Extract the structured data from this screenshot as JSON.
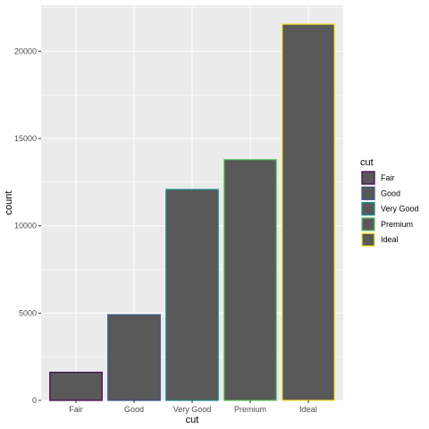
{
  "chart_data": {
    "type": "bar",
    "categories": [
      "Fair",
      "Good",
      "Very Good",
      "Premium",
      "Ideal"
    ],
    "values": [
      1610,
      4906,
      12082,
      13791,
      21551
    ],
    "xlabel": "cut",
    "ylabel": "count",
    "ylim": [
      0,
      22628
    ],
    "yticks": [
      0,
      5000,
      10000,
      15000,
      20000
    ],
    "ytick_labels": [
      "0",
      "5000",
      "10000",
      "15000",
      "20000"
    ],
    "bar_fill": "#595959",
    "outline_colors": [
      "#440154",
      "#3b528b",
      "#21908c",
      "#5dc863",
      "#fde725"
    ],
    "panel_background": "#ebebeb",
    "grid_color": "#ffffff",
    "grid": true,
    "legend": {
      "title": "cut",
      "placement": "right",
      "entries": [
        "Fair",
        "Good",
        "Very Good",
        "Premium",
        "Ideal"
      ]
    }
  }
}
